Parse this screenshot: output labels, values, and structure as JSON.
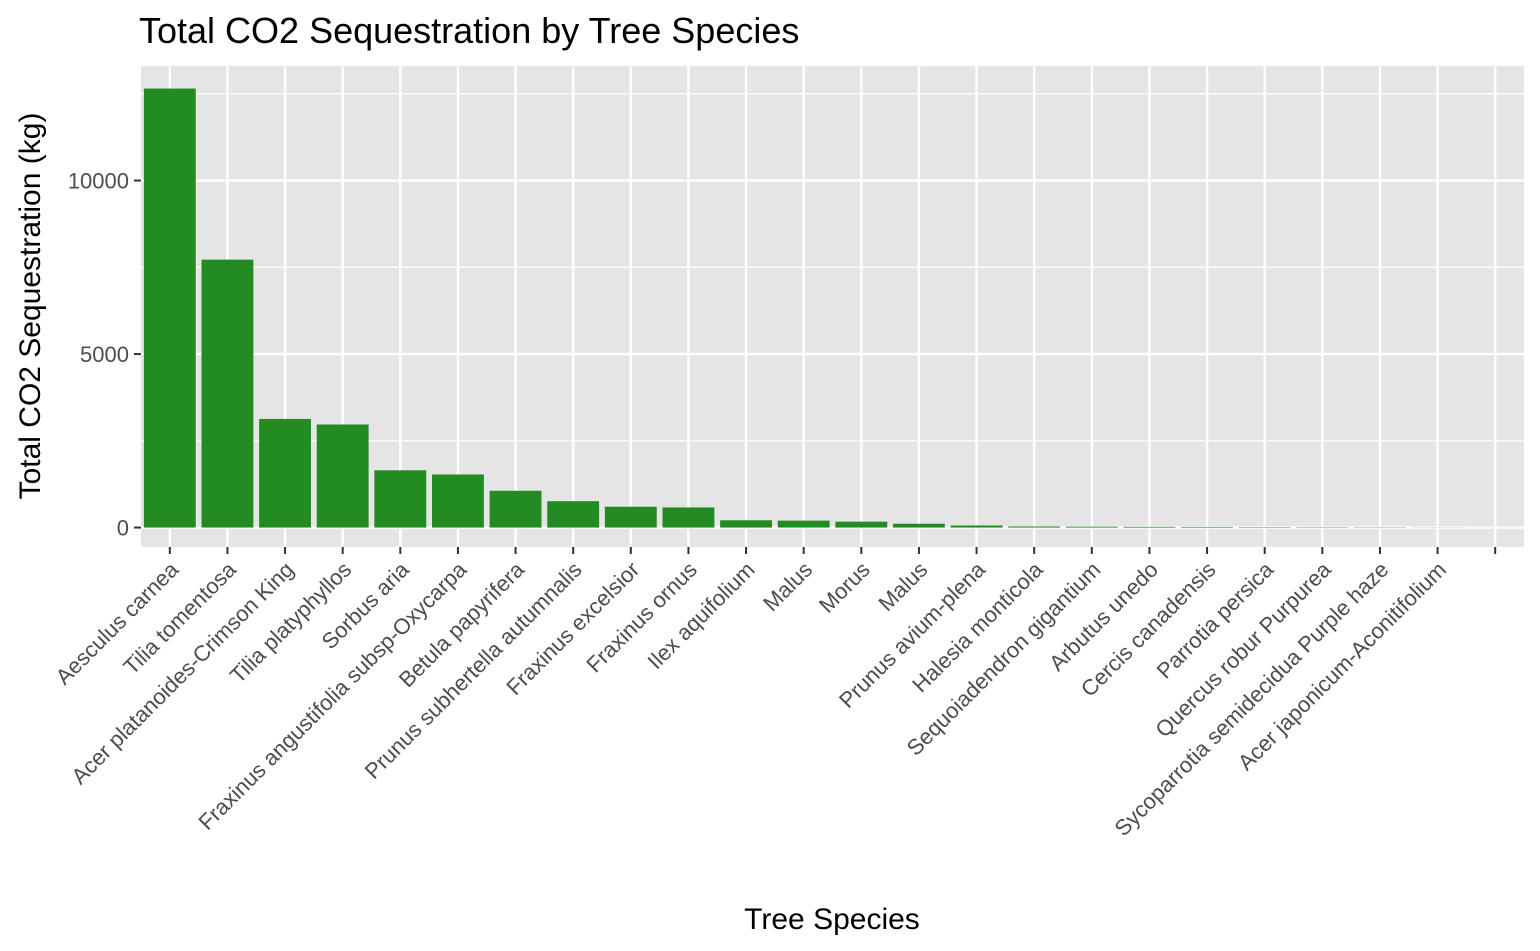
{
  "chart_data": {
    "type": "bar",
    "title": "Total CO2 Sequestration by Tree Species",
    "xlabel": "Tree Species",
    "ylabel": "Total CO2 Sequestration (kg)",
    "categories": [
      "Aesculus carnea",
      "Tilia tomentosa",
      "Acer platanoides-Crimson King",
      "Tilia platyphyllos",
      "Sorbus aria",
      "Fraxinus angustifolia subsp-Oxycarpa",
      "Betula papyrifera",
      "Prunus subhertella autumnalis",
      "Fraxinus excelsior",
      "Fraxinus ornus",
      "Ilex aquifolium",
      "Malus",
      "Morus",
      "Malus",
      "Prunus avium-plena",
      "Halesia monticola",
      "Sequoiadendron gigantium",
      "Arbutus unedo",
      "Cercis canadensis",
      "Parrotia persica",
      "Quercus robur Purpurea",
      "Sycoparrotia semidecidua Purple haze",
      "Acer japonicum-Aconitifolium",
      ""
    ],
    "values": [
      12650,
      7720,
      3130,
      2970,
      1650,
      1530,
      1060,
      760,
      600,
      580,
      210,
      200,
      170,
      110,
      60,
      30,
      25,
      20,
      18,
      12,
      10,
      8,
      4,
      2
    ],
    "ylim": [
      -560,
      13300
    ],
    "yticks": [
      0,
      5000,
      10000
    ],
    "ytick_labels": [
      "0",
      "5000",
      "10000"
    ],
    "grid": true,
    "colors": {
      "bar": "#228B22",
      "panel": "#E5E5E5",
      "grid": "#FFFFFF",
      "tick_text": "#4D4D4D",
      "tick_mark": "#333333"
    }
  }
}
